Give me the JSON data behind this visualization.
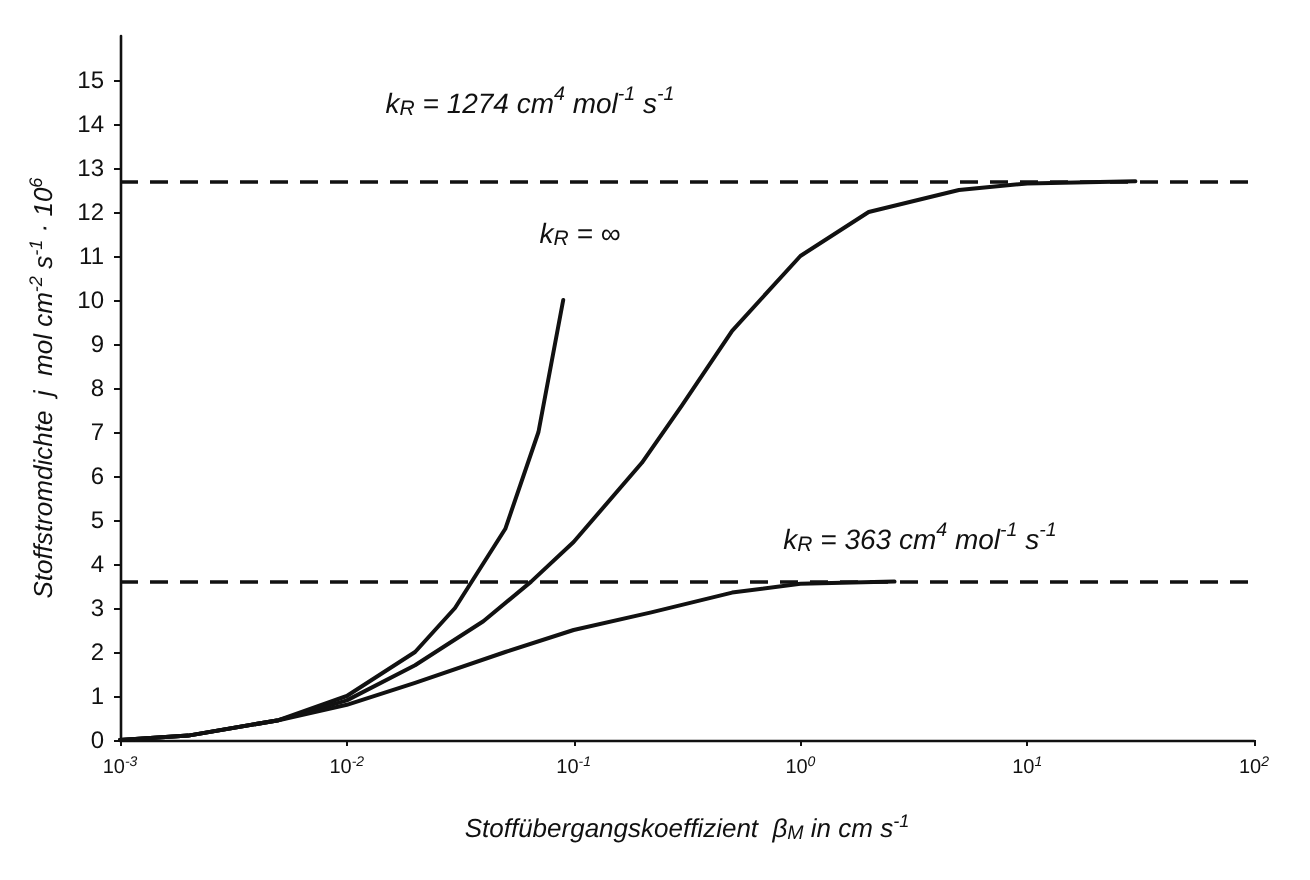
{
  "chart_data": {
    "type": "line",
    "xlabel": "Stoffübergangskoeffizient  β$_{M}$ in cm s$^{-1}$",
    "ylabel": "Stoffstromdichte  j  mol cm$^{-2}$ s$^{-1}$ · 10$^{6}$",
    "log": "x",
    "xlim": [
      0.001,
      100
    ],
    "xticks": [
      {
        "value": 0.001,
        "label": "10$^{-3}$"
      },
      {
        "value": 0.01,
        "label": "10$^{-2}$"
      },
      {
        "value": 0.1,
        "label": "10$^{-1}$"
      },
      {
        "value": 1,
        "label": "10$^{0}$"
      },
      {
        "value": 10,
        "label": "10$^{1}$"
      },
      {
        "value": 100,
        "label": "10$^{2}$"
      }
    ],
    "ylim": [
      0,
      16
    ],
    "yticks": [
      0,
      1,
      2,
      3,
      4,
      5,
      6,
      7,
      8,
      9,
      10,
      11,
      12,
      13,
      14,
      15
    ],
    "grid": false,
    "marker": "none",
    "line_style": "solid",
    "series": [
      {
        "color": "#111111",
        "x": [
          0.001,
          0.002,
          0.005,
          0.01,
          0.02,
          0.03,
          0.05,
          0.07,
          0.09
        ],
        "values": [
          0,
          0.1,
          0.45,
          1.0,
          2.0,
          3.0,
          4.8,
          7.0,
          10
        ]
      },
      {
        "color": "#111111",
        "x": [
          0.001,
          0.002,
          0.005,
          0.01,
          0.02,
          0.04,
          0.065,
          0.1,
          0.2,
          0.3,
          0.5,
          1,
          2,
          5,
          10,
          30
        ],
        "values": [
          0,
          0.1,
          0.45,
          0.9,
          1.7,
          2.7,
          3.6,
          4.5,
          6.3,
          7.6,
          9.3,
          11.0,
          12.0,
          12.5,
          12.65,
          12.7
        ]
      },
      {
        "color": "#111111",
        "x": [
          0.001,
          0.002,
          0.005,
          0.01,
          0.02,
          0.05,
          0.1,
          0.22,
          0.5,
          1,
          2.6
        ],
        "values": [
          0,
          0.1,
          0.45,
          0.8,
          1.3,
          2.0,
          2.5,
          2.9,
          3.35,
          3.55,
          3.6
        ]
      }
    ],
    "ref_lines": [
      {
        "axis": "y",
        "value": 12.7,
        "color": "#111111",
        "line_style": "dashed"
      },
      {
        "axis": "y",
        "value": 3.6,
        "color": "#111111",
        "line_style": "dashed"
      }
    ],
    "annotations": [
      "k$_{R}$ = 1274 cm$^{4}$ mol$^{-1}$ s$^{-1}$",
      "k$_{R}$ = ∞",
      "k$_{R}$ = 363 cm$^{4}$ mol$^{-1}$ s$^{-1}$"
    ]
  }
}
